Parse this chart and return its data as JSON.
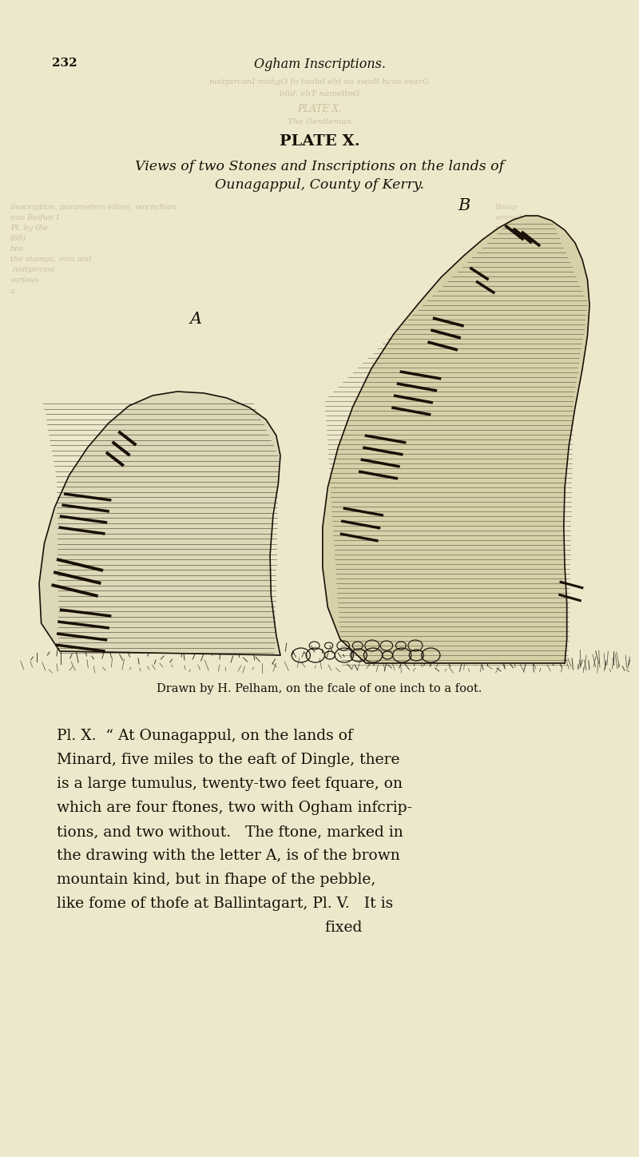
{
  "bg_color": "#ede8d0",
  "page_bg": "#ede8cc",
  "text_color": "#1a1008",
  "faded_text_color": "#a89870",
  "header_number": "232",
  "header_title": "Ogham Inscriptions.",
  "plate_title": "PLATE X.",
  "subtitle_line1": "Views of two Stones and Inscriptions on the lands of",
  "subtitle_line2": "Ounagappul, County of Kerry.",
  "caption": "Drawn by H. Pelham, on the fcale of one inch to a foot.",
  "label_A": "A",
  "label_B": "B",
  "body_lines": [
    "Pl. X.  “ At Ounagappul, on the lands of",
    "Minard, five miles to the eaft of Dingle, there",
    "is a large tumulus, twenty-two feet fquare, on",
    "which are four ftones, two with Ogham infcrip-",
    "tions, and two without.   The ftone, marked in",
    "the drawing with the letter A, is of the brown",
    "mountain kind, but in fhape of the pebble,",
    "like fome of thofe at Ballintagart, Pl. V.   It is",
    "                                                        fixed"
  ]
}
